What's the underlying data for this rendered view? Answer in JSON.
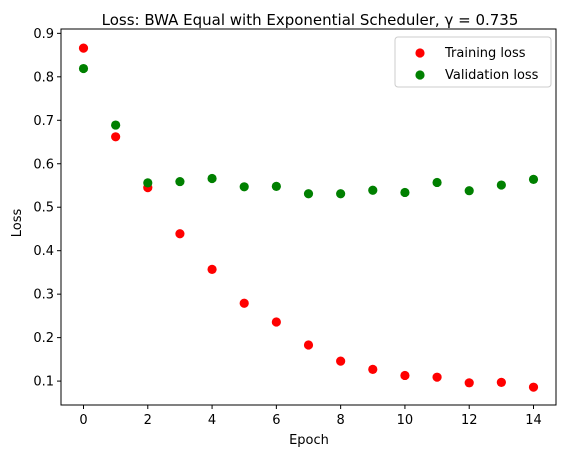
{
  "chart_data": {
    "type": "scatter",
    "title": "Loss: BWA Equal with Exponential Scheduler, γ = 0.735",
    "xlabel": "Epoch",
    "ylabel": "Loss",
    "xlim": [
      -0.7,
      14.7
    ],
    "ylim": [
      0.045,
      0.91
    ],
    "xticks": [
      0,
      2,
      4,
      6,
      8,
      10,
      12,
      14
    ],
    "yticks": [
      0.1,
      0.2,
      0.3,
      0.4,
      0.5,
      0.6,
      0.7,
      0.8,
      0.9
    ],
    "grid": false,
    "legend_position": "top-right",
    "x": [
      0,
      1,
      2,
      3,
      4,
      5,
      6,
      7,
      8,
      9,
      10,
      11,
      12,
      13,
      14
    ],
    "series": [
      {
        "name": "Training loss",
        "color": "#ff0000",
        "values": [
          0.866,
          0.662,
          0.545,
          0.439,
          0.357,
          0.279,
          0.236,
          0.183,
          0.146,
          0.127,
          0.113,
          0.109,
          0.096,
          0.097,
          0.086
        ]
      },
      {
        "name": "Validation loss",
        "color": "#008000",
        "values": [
          0.819,
          0.689,
          0.556,
          0.559,
          0.566,
          0.547,
          0.548,
          0.531,
          0.531,
          0.539,
          0.534,
          0.557,
          0.538,
          0.551,
          0.564
        ]
      }
    ]
  }
}
